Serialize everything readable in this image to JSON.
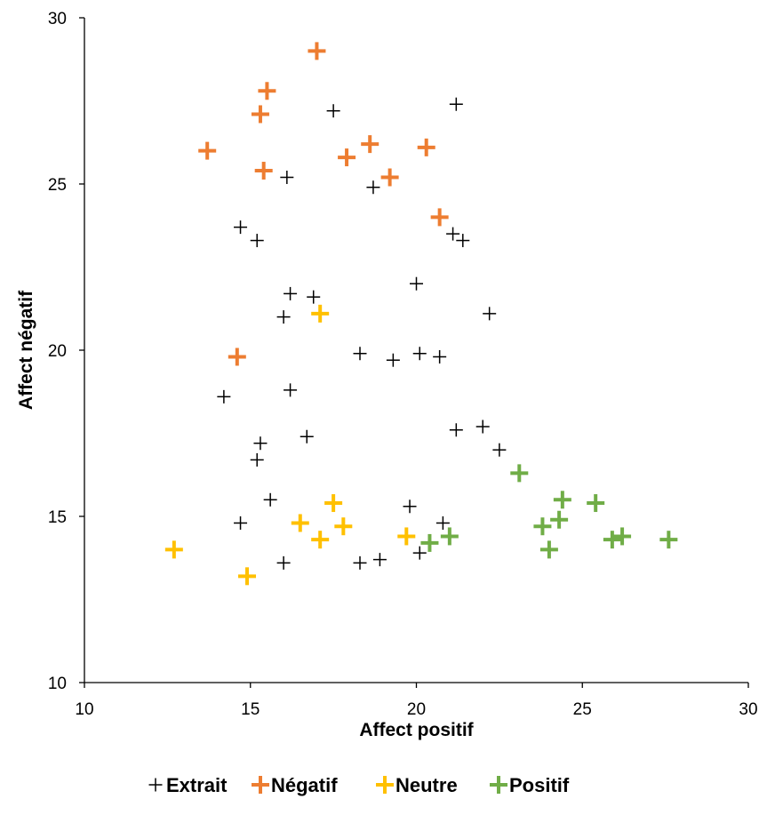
{
  "chart_data": {
    "type": "scatter",
    "xlabel": "Affect positif",
    "ylabel": "Affect négatif",
    "xlim": [
      10,
      30
    ],
    "ylim": [
      10,
      30
    ],
    "xticks": [
      10,
      15,
      20,
      25,
      30
    ],
    "yticks": [
      10,
      15,
      20,
      25,
      30
    ],
    "grid": false,
    "legend_position": "bottom",
    "series": [
      {
        "name": "Extrait",
        "color": "#000000",
        "marker": "thin-plus",
        "points": [
          [
            17.5,
            27.2
          ],
          [
            21.2,
            27.4
          ],
          [
            16.1,
            25.2
          ],
          [
            18.7,
            24.9
          ],
          [
            14.7,
            23.7
          ],
          [
            15.2,
            23.3
          ],
          [
            21.1,
            23.5
          ],
          [
            21.4,
            23.3
          ],
          [
            16.2,
            21.7
          ],
          [
            16.9,
            21.6
          ],
          [
            20.0,
            22.0
          ],
          [
            16.0,
            21.0
          ],
          [
            22.2,
            21.1
          ],
          [
            18.3,
            19.9
          ],
          [
            19.3,
            19.7
          ],
          [
            20.1,
            19.9
          ],
          [
            20.7,
            19.8
          ],
          [
            14.2,
            18.6
          ],
          [
            16.2,
            18.8
          ],
          [
            15.3,
            17.2
          ],
          [
            16.7,
            17.4
          ],
          [
            15.2,
            16.7
          ],
          [
            21.2,
            17.6
          ],
          [
            22.0,
            17.7
          ],
          [
            22.5,
            17.0
          ],
          [
            15.6,
            15.5
          ],
          [
            19.8,
            15.3
          ],
          [
            14.7,
            14.8
          ],
          [
            20.8,
            14.8
          ],
          [
            16.0,
            13.6
          ],
          [
            18.3,
            13.6
          ],
          [
            18.9,
            13.7
          ],
          [
            20.1,
            13.9
          ]
        ]
      },
      {
        "name": "Négatif",
        "color": "#ED7D31",
        "marker": "bold-plus",
        "points": [
          [
            17.0,
            29.0
          ],
          [
            15.5,
            27.8
          ],
          [
            15.3,
            27.1
          ],
          [
            13.7,
            26.0
          ],
          [
            18.6,
            26.2
          ],
          [
            20.3,
            26.1
          ],
          [
            15.4,
            25.4
          ],
          [
            17.9,
            25.8
          ],
          [
            19.2,
            25.2
          ],
          [
            20.7,
            24.0
          ],
          [
            14.6,
            19.8
          ]
        ]
      },
      {
        "name": "Neutre",
        "color": "#FFC000",
        "marker": "bold-plus",
        "points": [
          [
            17.1,
            21.1
          ],
          [
            12.7,
            14.0
          ],
          [
            14.9,
            13.2
          ],
          [
            16.5,
            14.8
          ],
          [
            17.1,
            14.3
          ],
          [
            17.5,
            15.4
          ],
          [
            17.8,
            14.7
          ],
          [
            19.7,
            14.4
          ]
        ]
      },
      {
        "name": "Positif",
        "color": "#70AD47",
        "marker": "bold-plus",
        "points": [
          [
            20.4,
            14.2
          ],
          [
            21.0,
            14.4
          ],
          [
            23.1,
            16.3
          ],
          [
            23.8,
            14.7
          ],
          [
            24.0,
            14.0
          ],
          [
            24.3,
            14.9
          ],
          [
            24.4,
            15.5
          ],
          [
            25.4,
            15.4
          ],
          [
            25.9,
            14.3
          ],
          [
            26.2,
            14.4
          ],
          [
            27.6,
            14.3
          ]
        ]
      }
    ]
  }
}
